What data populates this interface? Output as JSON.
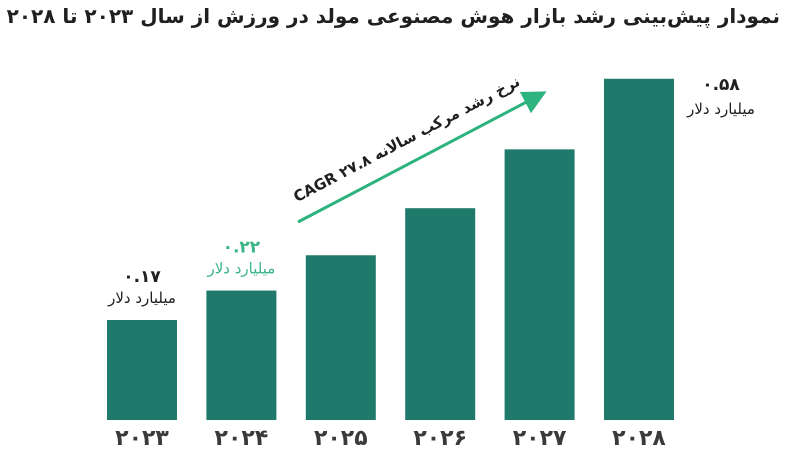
{
  "colors": {
    "bar": "#1f7a6b",
    "arrow": "#2db37e",
    "highlight": "#3bb588",
    "text": "#1f1f1f"
  },
  "chart_data": {
    "type": "bar",
    "title": "نمودار پیش‌بینی رشد بازار هوش مصنوعی مولد در ورزش از سال ۲۰۲۳ تا ۲۰۲۸",
    "categories": [
      "۲۰۲۳",
      "۲۰۲۴",
      "۲۰۲۵",
      "۲۰۲۶",
      "۲۰۲۷",
      "۲۰۲۸"
    ],
    "values": [
      0.17,
      0.22,
      0.28,
      0.36,
      0.46,
      0.58
    ],
    "ylim": [
      0,
      0.6
    ],
    "grid": false,
    "data_labels": [
      {
        "index": 0,
        "value": "۰.۱۷",
        "unit": "میلیارد دلار",
        "highlight": false
      },
      {
        "index": 1,
        "value": "۰.۲۲",
        "unit": "میلیارد دلار",
        "highlight": true
      },
      {
        "index": 5,
        "value": "۰.۵۸",
        "unit": "میلیارد دلار",
        "highlight": false
      }
    ],
    "annotation": {
      "text": "CAGR ۲۷.۸ نرخ رشد مرکب سالانه"
    }
  }
}
